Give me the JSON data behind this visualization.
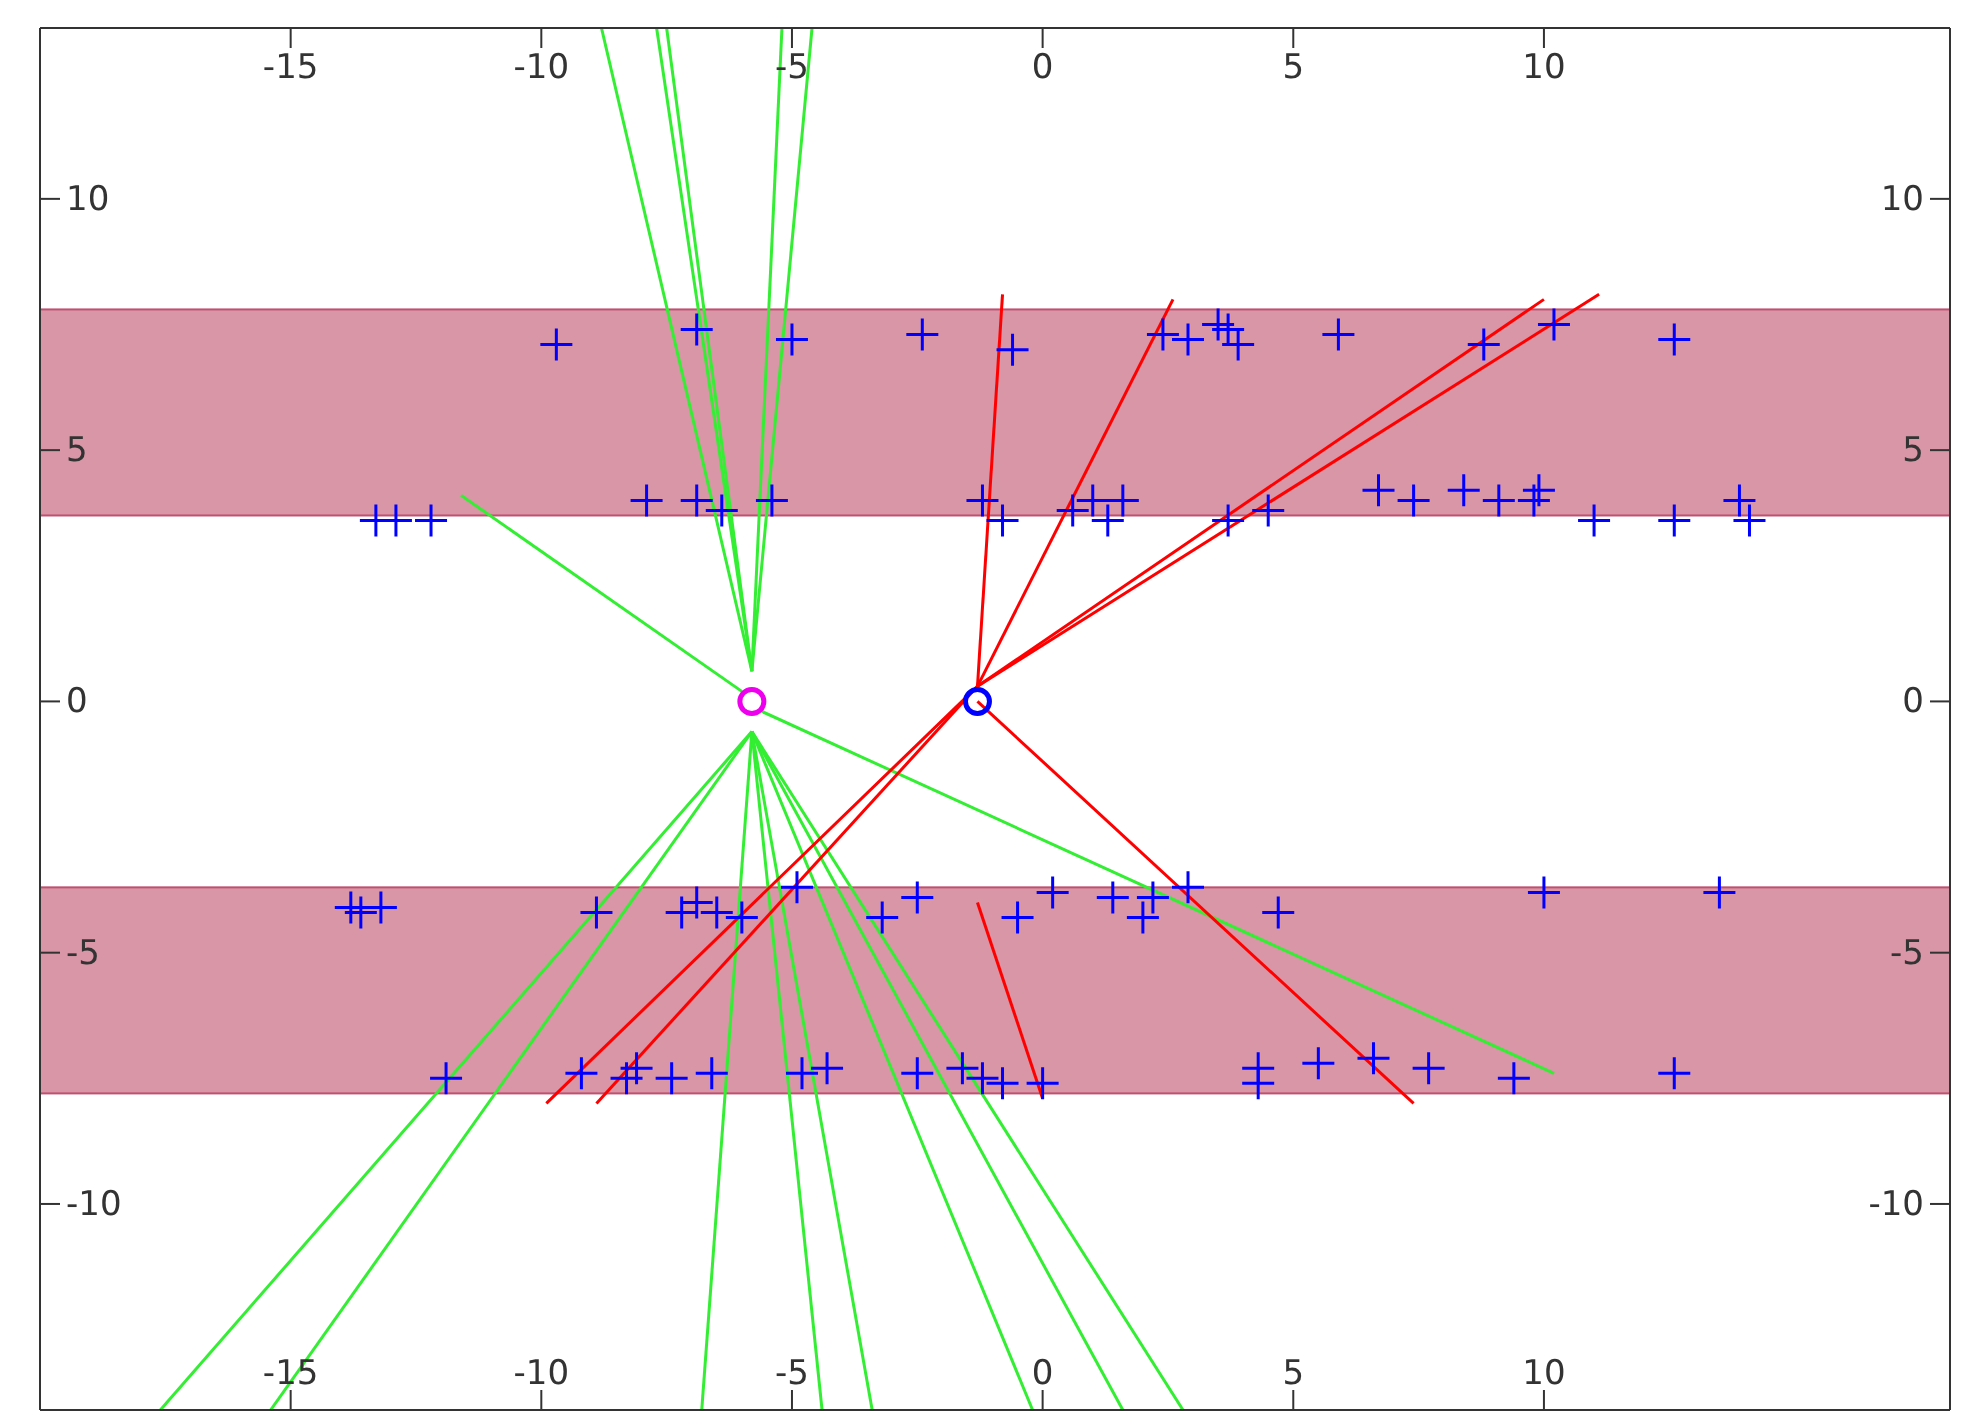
{
  "chart_data": {
    "type": "scatter",
    "xlim": [
      -20,
      18.1
    ],
    "ylim": [
      -14.1,
      13.4
    ],
    "xticks": [
      -15,
      -10,
      -5,
      0,
      5,
      10
    ],
    "yticks": [
      -10,
      -5,
      0,
      5,
      10
    ],
    "x2lim": [
      -20,
      18.1
    ],
    "x2ticks": [
      -15,
      -10,
      -5,
      0,
      5,
      10
    ],
    "y2lim": [
      -14.1,
      13.4
    ],
    "y2ticks": [
      -10,
      -5,
      0,
      5,
      10
    ],
    "bands": [
      {
        "axis": "y",
        "from": 3.7,
        "to": 7.8,
        "color": "#d896a6"
      },
      {
        "axis": "y",
        "from": -7.8,
        "to": -3.7,
        "color": "#d896a6"
      }
    ],
    "series": [
      {
        "type": "line",
        "color": "#33ee33",
        "x": [
          -5.8,
          -8.8
        ],
        "values": [
          0.6,
          13.4
        ]
      },
      {
        "type": "line",
        "color": "#33ee33",
        "x": [
          -5.8,
          -7.7
        ],
        "values": [
          0.6,
          13.4
        ]
      },
      {
        "type": "line",
        "color": "#33ee33",
        "x": [
          -5.8,
          -7.5
        ],
        "values": [
          0.6,
          13.4
        ]
      },
      {
        "type": "line",
        "color": "#33ee33",
        "x": [
          -5.8,
          -5.2
        ],
        "values": [
          0.6,
          13.4
        ]
      },
      {
        "type": "line",
        "color": "#33ee33",
        "x": [
          -5.8,
          -4.6
        ],
        "values": [
          0.6,
          13.4
        ]
      },
      {
        "type": "line",
        "color": "#33ee33",
        "x": [
          -5.8,
          -17.6
        ],
        "values": [
          -0.6,
          -14.1
        ]
      },
      {
        "type": "line",
        "color": "#33ee33",
        "x": [
          -5.8,
          -15.4
        ],
        "values": [
          -0.6,
          -14.1
        ]
      },
      {
        "type": "line",
        "color": "#33ee33",
        "x": [
          -5.8,
          -6.8
        ],
        "values": [
          -0.6,
          -14.1
        ]
      },
      {
        "type": "line",
        "color": "#33ee33",
        "x": [
          -5.8,
          -4.4
        ],
        "values": [
          -0.6,
          -14.1
        ]
      },
      {
        "type": "line",
        "color": "#33ee33",
        "x": [
          -5.8,
          -3.4
        ],
        "values": [
          -0.6,
          -14.1
        ]
      },
      {
        "type": "line",
        "color": "#33ee33",
        "x": [
          -5.8,
          -0.2
        ],
        "values": [
          -0.6,
          -14.1
        ]
      },
      {
        "type": "line",
        "color": "#33ee33",
        "x": [
          -5.8,
          1.6
        ],
        "values": [
          -0.6,
          -14.1
        ]
      },
      {
        "type": "line",
        "color": "#33ee33",
        "x": [
          -5.8,
          2.8
        ],
        "values": [
          -0.6,
          -14.1
        ]
      },
      {
        "type": "line",
        "color": "#33ee33",
        "x": [
          -5.6,
          10.2
        ],
        "values": [
          -0.2,
          -7.4
        ]
      },
      {
        "type": "line",
        "color": "#33ee33",
        "x": [
          -6.0,
          -11.6
        ],
        "values": [
          0.2,
          4.1
        ]
      },
      {
        "type": "line",
        "color": "#ff0000",
        "x": [
          -1.3,
          -0.8
        ],
        "values": [
          0.3,
          8.1
        ]
      },
      {
        "type": "line",
        "color": "#ff0000",
        "x": [
          -1.3,
          2.6
        ],
        "values": [
          0.3,
          8
        ]
      },
      {
        "type": "line",
        "color": "#ff0000",
        "x": [
          -1.3,
          10
        ],
        "values": [
          0.3,
          8
        ]
      },
      {
        "type": "line",
        "color": "#ff0000",
        "x": [
          -1.3,
          11.1
        ],
        "values": [
          0.3,
          8.1
        ]
      },
      {
        "type": "line",
        "color": "#ff0000",
        "x": [
          -1.3,
          -9.9
        ],
        "values": [
          0.3,
          -8
        ]
      },
      {
        "type": "line",
        "color": "#ff0000",
        "x": [
          -1.3,
          -8.9
        ],
        "values": [
          0.3,
          -8
        ]
      },
      {
        "type": "line",
        "color": "#ff0000",
        "x": [
          -1.3,
          7.4
        ],
        "values": [
          0,
          -8
        ]
      },
      {
        "type": "line",
        "color": "#ff0000",
        "x": [
          -1.3,
          0
        ],
        "values": [
          -4,
          -7.9
        ]
      },
      {
        "marker": "cross",
        "color": "#0000ff",
        "x": [
          -9.7,
          -6.9,
          -5.0,
          -2.4,
          -0.6,
          2.4,
          2.9,
          3.5,
          3.7,
          3.9,
          5.9,
          8.8,
          10.2,
          12.6,
          -13.3,
          -12.9,
          -12.2,
          -7.9,
          -6.9,
          -6.4,
          -5.4,
          -1.2,
          -0.8,
          0.6,
          1.0,
          1.3,
          1.6,
          3.7,
          4.5,
          6.7,
          7.4,
          8.4,
          9.1,
          9.8,
          9.9,
          11.0,
          12.6,
          13.9,
          14.1,
          -13.8,
          -13.6,
          -13.2,
          -8.9,
          -7.2,
          -6.9,
          -6.5,
          -6.0,
          -4.9,
          -3.2,
          -2.5,
          -0.5,
          0.2,
          1.4,
          2.0,
          2.2,
          2.9,
          4.7,
          10.0,
          13.5,
          -11.9,
          -9.2,
          -8.3,
          -8.1,
          -7.4,
          -6.6,
          -4.8,
          -4.3,
          -2.5,
          -1.6,
          -1.2,
          -0.8,
          0.0,
          4.3,
          4.3,
          5.5,
          6.6,
          7.7,
          9.4,
          12.6
        ],
        "values": [
          7.1,
          7.4,
          7.2,
          7.3,
          7.0,
          7.3,
          7.2,
          7.5,
          7.4,
          7.1,
          7.3,
          7.1,
          7.5,
          7.2,
          3.6,
          3.6,
          3.6,
          4.0,
          4.0,
          3.8,
          4.0,
          4.0,
          3.6,
          3.8,
          4.0,
          3.6,
          4.0,
          3.6,
          3.8,
          4.2,
          4.0,
          4.2,
          4.0,
          4.0,
          4.2,
          3.6,
          3.6,
          4.0,
          3.6,
          -4.1,
          -4.2,
          -4.1,
          -4.2,
          -4.2,
          -4.0,
          -4.2,
          -4.3,
          -3.7,
          -4.3,
          -3.9,
          -4.3,
          -3.8,
          -3.9,
          -4.3,
          -3.9,
          -3.7,
          -4.2,
          -3.8,
          -3.8,
          -7.5,
          -7.4,
          -7.5,
          -7.3,
          -7.5,
          -7.4,
          -7.4,
          -7.3,
          -7.4,
          -7.3,
          -7.5,
          -7.6,
          -7.6,
          -7.6,
          -7.3,
          -7.2,
          -7.1,
          -7.3,
          -7.5,
          -7.4
        ]
      },
      {
        "marker": "circle",
        "color": "#ee00ee",
        "x": [
          -5.8
        ],
        "values": [
          0
        ]
      },
      {
        "marker": "circle",
        "color": "#0000ff",
        "x": [
          -1.3
        ],
        "values": [
          0
        ]
      }
    ]
  }
}
